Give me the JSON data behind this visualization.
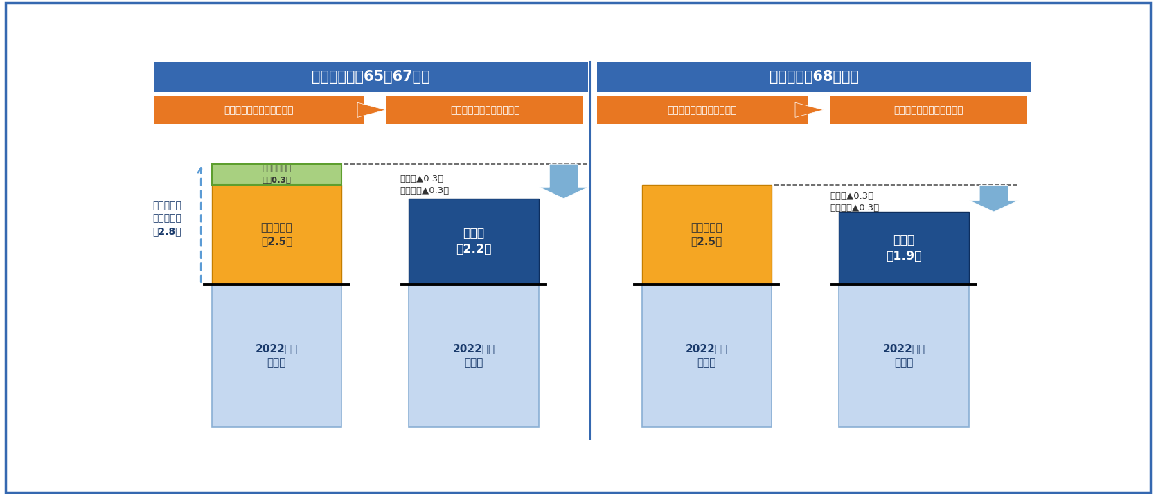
{
  "title_left": "新規裁定者（65〜67歳）",
  "title_right": "既裁定者（68歳〜）",
  "header_color": "#3568B0",
  "header_text_color": "#FFFFFF",
  "orange_header_color": "#E87722",
  "orange_header_text_color": "#FFFFFF",
  "label_before": "マクロ経済スライド調整前",
  "label_after": "マクロ経済スライド調整後",
  "bg_color": "#FFFFFF",
  "outer_border_color": "#3568B0",
  "base_bar_color": "#C5D8F0",
  "base_bar_text": "2022年度\n年金額",
  "base_bar_text_color": "#1A3A6B",
  "orange_bar_color": "#F5A623",
  "orange_bar_text": "物価変動率\n＋2.5％",
  "orange_bar_text_color": "#333333",
  "green_bar_color": "#A8D080",
  "green_bar_border_color": "#5D9E2E",
  "green_bar_text": "実質賃金変動\n率＋0.3％",
  "green_bar_text_color": "#333333",
  "dark_blue_bar_color": "#1F4E8C",
  "dark_blue_bar_text_left": "改定率\n＋2.2％",
  "dark_blue_bar_text_right": "改定率\n＋1.9％",
  "dark_blue_bar_text_color": "#FFFFFF",
  "arrow_color": "#7BAFD4",
  "wage_label": "名目手取り\n賃金変動率\n＋2.8％",
  "wage_label_color": "#1A3A6B",
  "adjust_text": "調整率▲0.3％\n未調整分▲0.3％",
  "adjust_text_color": "#333333",
  "divider_color": "#3568B0"
}
